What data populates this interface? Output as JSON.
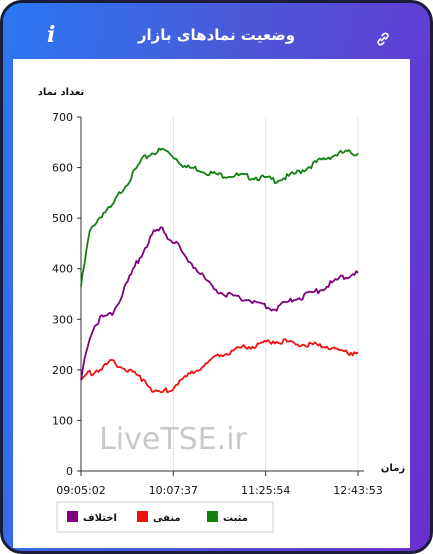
{
  "header": {
    "title": "وضعیت نمادهای بازار",
    "info_icon": "i"
  },
  "chart_data": {
    "type": "line",
    "ylabel": "تعداد نماد",
    "xlabel": "زمان",
    "ylim": [
      0,
      700
    ],
    "yticks": [
      "0",
      "100",
      "200",
      "300",
      "400",
      "500",
      "600",
      "700"
    ],
    "xticks": [
      "09:05:02",
      "10:07:37",
      "11:25:54",
      "12:43:53"
    ],
    "watermark": "LiveTSE.ir",
    "grid": "vertical",
    "legend_position": "bottom",
    "series": [
      {
        "name": "مثبت",
        "color": "#118011",
        "x_frac": [
          0,
          0.01,
          0.03,
          0.05,
          0.08,
          0.11,
          0.14,
          0.18,
          0.22,
          0.26,
          0.3,
          0.34,
          0.38,
          0.42,
          0.46,
          0.5,
          0.55,
          0.6,
          0.65,
          0.7,
          0.75,
          0.8,
          0.85,
          0.9,
          0.95,
          1
        ],
        "values": [
          365,
          400,
          470,
          490,
          510,
          520,
          550,
          580,
          615,
          630,
          635,
          620,
          600,
          598,
          590,
          585,
          585,
          582,
          580,
          575,
          582,
          595,
          610,
          622,
          630,
          628
        ]
      },
      {
        "name": "منفی",
        "color": "#ee1111",
        "x_frac": [
          0,
          0.02,
          0.05,
          0.08,
          0.11,
          0.14,
          0.17,
          0.2,
          0.23,
          0.26,
          0.29,
          0.32,
          0.35,
          0.38,
          0.42,
          0.46,
          0.5,
          0.55,
          0.6,
          0.65,
          0.7,
          0.75,
          0.8,
          0.85,
          0.9,
          0.95,
          1
        ],
        "values": [
          180,
          190,
          198,
          205,
          215,
          210,
          198,
          190,
          180,
          160,
          155,
          160,
          175,
          185,
          200,
          215,
          230,
          238,
          245,
          250,
          258,
          255,
          250,
          248,
          245,
          235,
          235
        ]
      },
      {
        "name": "اختلاف",
        "color": "#800080",
        "x_frac": [
          0,
          0.02,
          0.05,
          0.08,
          0.11,
          0.14,
          0.17,
          0.2,
          0.23,
          0.26,
          0.29,
          0.32,
          0.35,
          0.38,
          0.42,
          0.46,
          0.5,
          0.55,
          0.6,
          0.65,
          0.7,
          0.75,
          0.8,
          0.85,
          0.9,
          0.95,
          1
        ],
        "values": [
          180,
          245,
          290,
          305,
          310,
          340,
          375,
          410,
          440,
          470,
          478,
          460,
          445,
          420,
          400,
          370,
          355,
          345,
          340,
          330,
          320,
          335,
          345,
          355,
          370,
          385,
          392
        ]
      }
    ]
  },
  "legend": {
    "items": [
      {
        "label": "مثبت",
        "color": "#118011"
      },
      {
        "label": "منفی",
        "color": "#ee1111"
      },
      {
        "label": "اختلاف",
        "color": "#800080"
      }
    ]
  }
}
